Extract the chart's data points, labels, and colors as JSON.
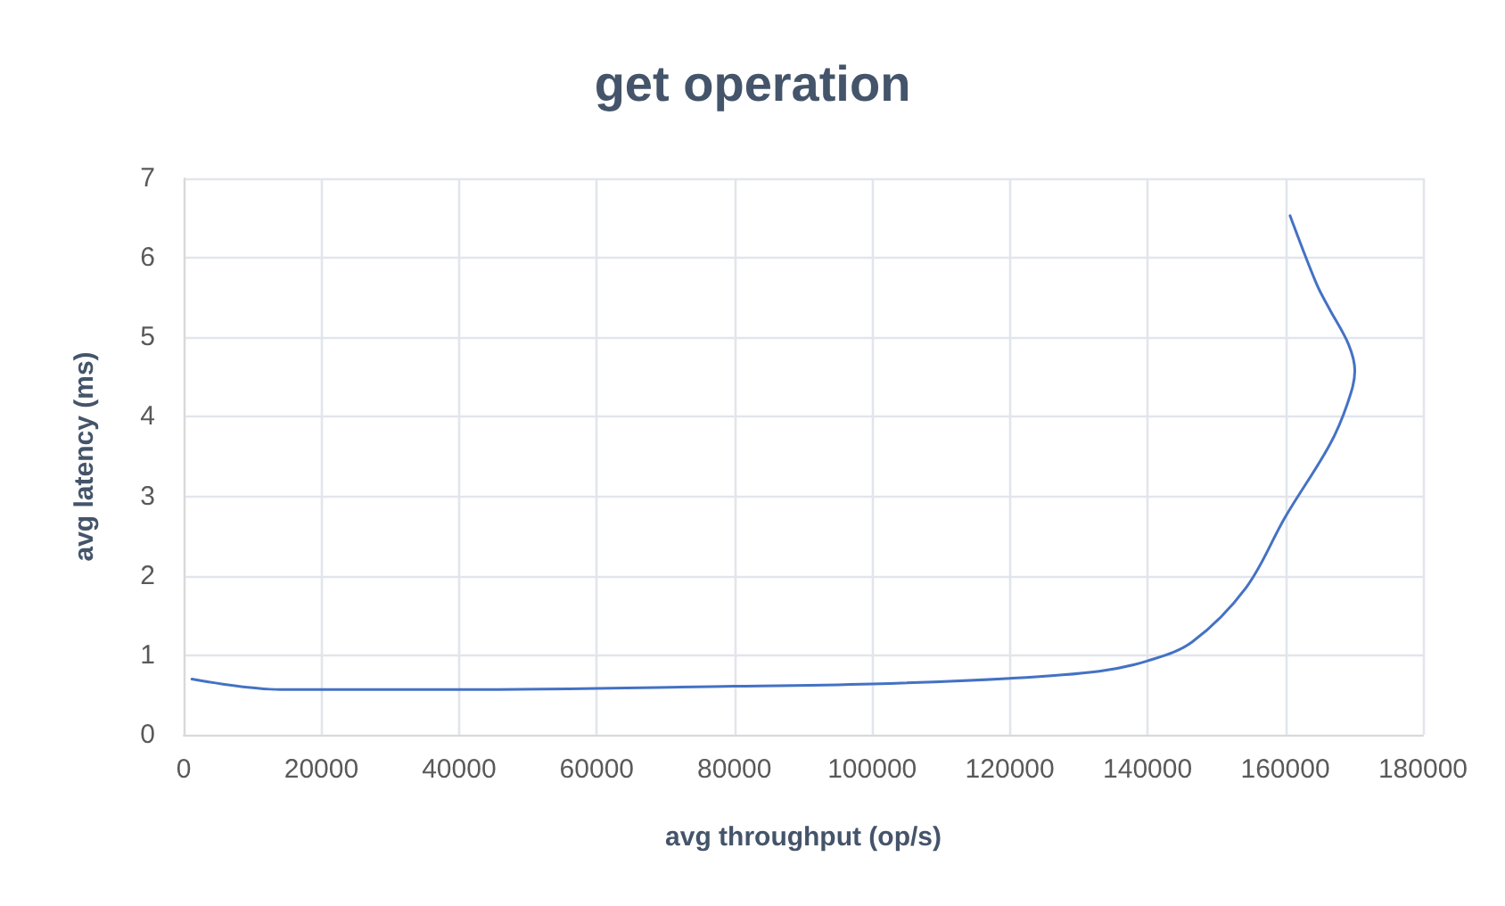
{
  "chart_data": {
    "type": "line",
    "title": "get operation",
    "xlabel": "avg throughput (op/s)",
    "ylabel": "avg latency (ms)",
    "series": [
      {
        "color": "#4472c4",
        "x": [
          1200,
          14000,
          40000,
          80000,
          100000,
          120000,
          133000,
          140000,
          146500,
          154300,
          160000,
          166400,
          169000,
          170100,
          169200,
          166400,
          164600,
          160700
        ],
        "values": [
          0.7,
          0.57,
          0.57,
          0.61,
          0.64,
          0.71,
          0.8,
          0.93,
          1.17,
          1.85,
          2.74,
          3.64,
          4.16,
          4.58,
          4.91,
          5.36,
          5.66,
          6.53
        ]
      }
    ],
    "xlim": [
      0,
      180000
    ],
    "xticks": [
      0,
      20000,
      40000,
      60000,
      80000,
      100000,
      120000,
      140000,
      160000,
      180000
    ],
    "ylim": [
      0,
      7
    ],
    "yticks": [
      0,
      1,
      2,
      3,
      4,
      5,
      6,
      7
    ],
    "grid": true,
    "marker": "none",
    "line_style": "solid"
  }
}
